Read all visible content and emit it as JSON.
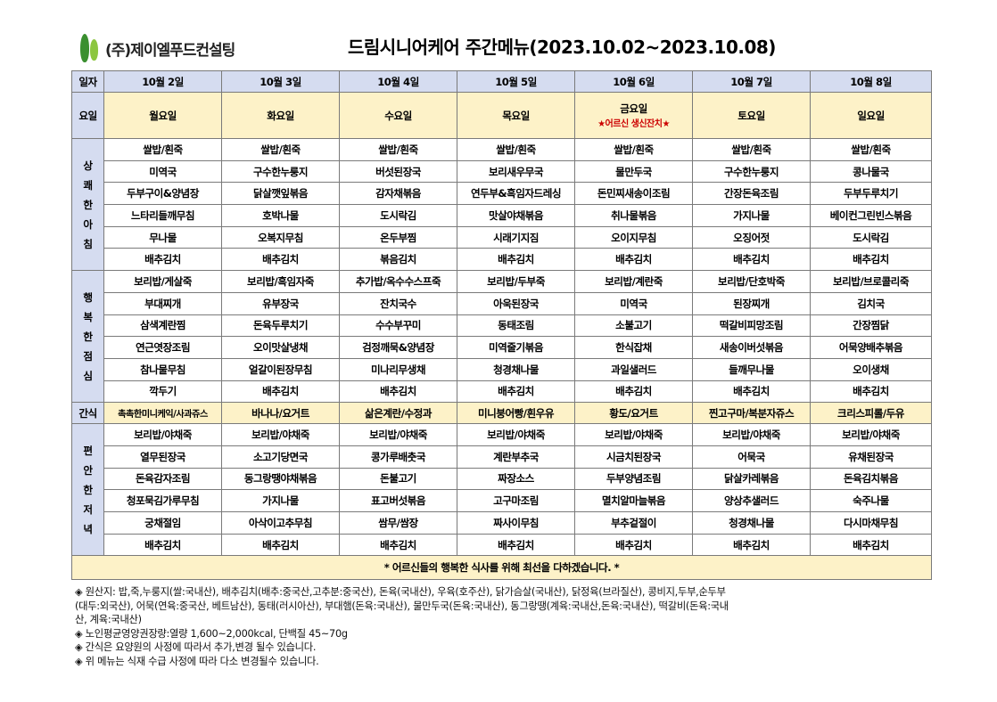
{
  "logo": {
    "text": "(주)제이엘푸드컨설팅",
    "colors": {
      "green": "#3a8f2f",
      "lime": "#8cc63f"
    }
  },
  "title": "드림시니어케어 주간메뉴(2023.10.02~2023.10.08)",
  "labels": {
    "date": "일자",
    "day": "요일",
    "snack": "간식"
  },
  "dates": [
    "10월 2일",
    "10월 3일",
    "10월 4일",
    "10월 5일",
    "10월 6일",
    "10월 7일",
    "10월 8일"
  ],
  "days": [
    "월요일",
    "화요일",
    "수요일",
    "목요일",
    "금요일",
    "토요일",
    "일요일"
  ],
  "friday_note": "★어르신 생신잔치★",
  "meals": [
    {
      "label_chars": [
        "상",
        "쾌",
        "한",
        "아",
        "침"
      ],
      "rows": [
        [
          "쌀밥/흰죽",
          "쌀밥/흰죽",
          "쌀밥/흰죽",
          "쌀밥/흰죽",
          "쌀밥/흰죽",
          "쌀밥/흰죽",
          "쌀밥/흰죽"
        ],
        [
          "미역국",
          "구수한누룽지",
          "버섯된장국",
          "보리새우무국",
          "물만두국",
          "구수한누룽지",
          "콩나물국"
        ],
        [
          "두부구이&양념장",
          "닭살깻잎볶음",
          "감자채볶음",
          "연두부&흑임자드레싱",
          "돈민찌새송이조림",
          "간장돈육조림",
          "두부두루치기"
        ],
        [
          "느타리들깨무침",
          "호박나물",
          "도시락김",
          "맛살야채볶음",
          "취나물볶음",
          "가지나물",
          "베이컨그린빈스볶음"
        ],
        [
          "무나물",
          "오복지무침",
          "온두부찜",
          "시래기지짐",
          "오이지무침",
          "오징어젓",
          "도시락김"
        ],
        [
          "배추김치",
          "배추김치",
          "볶음김치",
          "배추김치",
          "배추김치",
          "배추김치",
          "배추김치"
        ]
      ]
    },
    {
      "label_chars": [
        "행",
        "복",
        "한",
        "점",
        "심"
      ],
      "rows": [
        [
          "보리밥/게살죽",
          "보리밥/흑임자죽",
          "추가밥/옥수수스프죽",
          "보리밥/두부죽",
          "보리밥/계란죽",
          "보리밥/단호박죽",
          "보리밥/브로콜리죽"
        ],
        [
          "부대찌개",
          "유부장국",
          "잔치국수",
          "아욱된장국",
          "미역국",
          "된장찌개",
          "김치국"
        ],
        [
          "삼색계란찜",
          "돈육두루치기",
          "수수부꾸미",
          "동태조림",
          "소불고기",
          "떡갈비피망조림",
          "간장찜닭"
        ],
        [
          "연근엿장조림",
          "오이맛살냉채",
          "검정깨묵&양념장",
          "미역줄기볶음",
          "한식잡채",
          "새송이버섯볶음",
          "어묵양배추볶음"
        ],
        [
          "참나물무침",
          "얼갈이된장무침",
          "미나리무생채",
          "청경채나물",
          "과일샐러드",
          "들깨무나물",
          "오이생채"
        ],
        [
          "깍두기",
          "배추김치",
          "배추김치",
          "배추김치",
          "배추김치",
          "배추김치",
          "배추김치"
        ]
      ]
    },
    {
      "label_chars": [
        "편",
        "안",
        "한",
        "저",
        "녁"
      ],
      "rows": [
        [
          "보리밥/야채죽",
          "보리밥/야채죽",
          "보리밥/야채죽",
          "보리밥/야채죽",
          "보리밥/야채죽",
          "보리밥/야채죽",
          "보리밥/야채죽"
        ],
        [
          "열무된장국",
          "소고기당면국",
          "콩가루배춧국",
          "계란부추국",
          "시금치된장국",
          "어묵국",
          "유채된장국"
        ],
        [
          "돈육감자조림",
          "동그랑땡야채볶음",
          "돈불고기",
          "짜장소스",
          "두부양념조림",
          "닭살카레볶음",
          "돈육김치볶음"
        ],
        [
          "청포묵김가루무침",
          "가지나물",
          "표고버섯볶음",
          "고구마조림",
          "멸치알마늘볶음",
          "양상추샐러드",
          "숙주나물"
        ],
        [
          "궁채절임",
          "아삭이고추무침",
          "쌈무/쌈장",
          "짜사이무침",
          "부추겉절이",
          "청경채나물",
          "다시마채무침"
        ],
        [
          "배추김치",
          "배추김치",
          "배추김치",
          "배추김치",
          "배추김치",
          "배추김치",
          "배추김치"
        ]
      ]
    }
  ],
  "snacks": [
    "촉촉한미니케익/사과쥬스",
    "바나나/요거트",
    "삶은계란/수정과",
    "미니붕어빵/흰우유",
    "황도/요거트",
    "찐고구마/복분자쥬스",
    "크리스피롤/두유"
  ],
  "footer_message": "* 어르신들의 행복한 식사를 위해 최선을 다하겠습니다. *",
  "notes": [
    "◈ 원산지: 밥,죽,누룽지(쌀:국내산), 배추김치(배추:중국산,고추분:중국산), 돈육(국내산), 우육(호주산), 닭가슴살(국내산), 닭정육(브라질산), 콩비지,두부,순두부",
    "(대두:외국산), 어묵(연육:중국산, 베트남산), 동태(러시아산), 부대햄(돈육:국내산), 물만두국(돈육:국내산), 동그랑땡(계육:국내산,돈육:국내산), 떡갈비(돈육:국내",
    "산, 계육:국내산)",
    "◈ 노인평균영양권장량:열량 1,600~2,000kcal, 단백질 45~70g",
    "◈ 간식은 요양원의 사정에 따라서 추가,변경 될수 있습니다.",
    "◈ 위 메뉴는 식재 수급 사정에 따라 다소 변경될수 있습니다."
  ]
}
